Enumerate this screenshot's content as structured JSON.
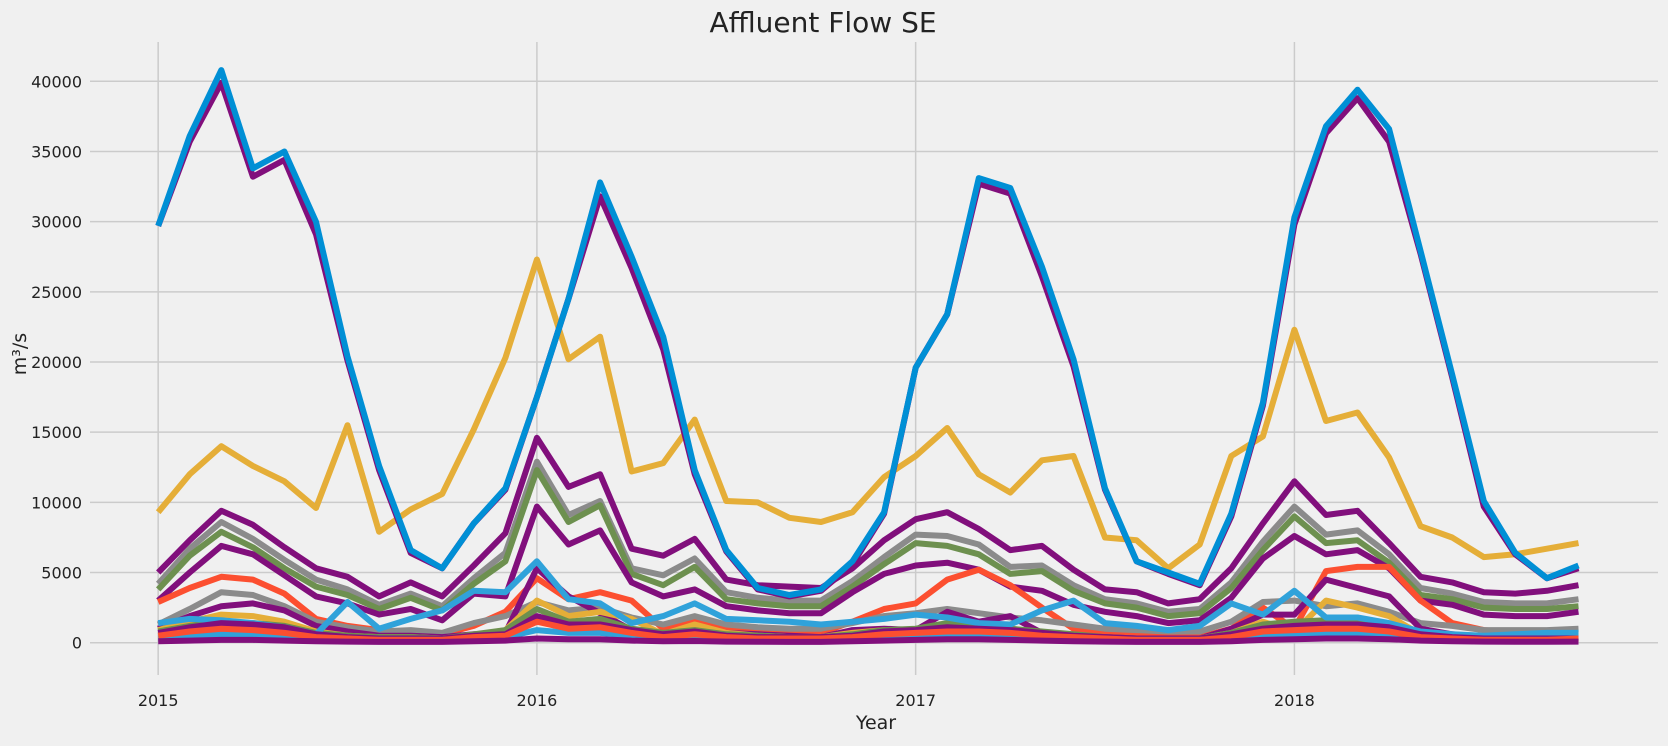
{
  "chart_data": {
    "type": "line",
    "title": "Affluent Flow SE",
    "xlabel": "Year",
    "ylabel": "m³/s",
    "x_ticks": [
      {
        "value": 2015,
        "label": "2015"
      },
      {
        "value": 2016,
        "label": "2016"
      },
      {
        "value": 2017,
        "label": "2017"
      },
      {
        "value": 2018,
        "label": "2018"
      }
    ],
    "y_ticks": [
      0,
      5000,
      10000,
      15000,
      20000,
      25000,
      30000,
      35000,
      40000
    ],
    "xlim": [
      2014.82,
      2018.96
    ],
    "ylim": [
      -2300,
      42800
    ],
    "grid": true,
    "legend": "none",
    "x": [
      2015.0,
      2015.0833,
      2015.1667,
      2015.25,
      2015.3333,
      2015.4167,
      2015.5,
      2015.5833,
      2015.6667,
      2015.75,
      2015.8333,
      2015.9167,
      2016.0,
      2016.0833,
      2016.1667,
      2016.25,
      2016.3333,
      2016.4167,
      2016.5,
      2016.5833,
      2016.6667,
      2016.75,
      2016.8333,
      2016.9167,
      2017.0,
      2017.0833,
      2017.1667,
      2017.25,
      2017.3333,
      2017.4167,
      2017.5,
      2017.5833,
      2017.6667,
      2017.75,
      2017.8333,
      2017.9167,
      2018.0,
      2018.0833,
      2018.1667,
      2018.25,
      2018.3333,
      2018.4167,
      2018.5,
      2018.5833,
      2018.6667,
      2018.75
    ],
    "series": [
      {
        "color": "#e5ae38",
        "values": [
          9300,
          12000,
          14000,
          12600,
          11500,
          9600,
          15500,
          7900,
          9500,
          10600,
          15200,
          20300,
          27300,
          20200,
          21800,
          12200,
          12800,
          15900,
          10100,
          10000,
          8900,
          8600,
          9300,
          11800,
          13300,
          15300,
          12000,
          10700,
          13000,
          13300,
          7500,
          7300,
          5300,
          7000,
          13300,
          14700,
          22300,
          15800,
          16400,
          13200,
          8300,
          7500,
          6100,
          6300,
          6700,
          7100
        ]
      },
      {
        "color": "#810f7c",
        "values": [
          5000,
          7300,
          9400,
          8400,
          6800,
          5300,
          4700,
          3300,
          4300,
          3300,
          5500,
          7800,
          14600,
          11100,
          12000,
          6700,
          6200,
          7400,
          4500,
          4100,
          4000,
          3900,
          5300,
          7300,
          8800,
          9300,
          8100,
          6600,
          6900,
          5200,
          3800,
          3600,
          2800,
          3100,
          5300,
          8500,
          11500,
          9100,
          9400,
          7100,
          4700,
          4300,
          3600,
          3500,
          3700,
          4100
        ]
      },
      {
        "color": "#8b8b8b",
        "values": [
          4200,
          6700,
          8600,
          7400,
          5900,
          4500,
          3800,
          2700,
          3500,
          2600,
          4600,
          6400,
          12900,
          9100,
          10100,
          5300,
          4800,
          6000,
          3600,
          3200,
          3000,
          3000,
          4400,
          6100,
          7700,
          7600,
          7000,
          5400,
          5500,
          4100,
          3100,
          2800,
          2200,
          2400,
          4300,
          7200,
          9700,
          7700,
          8000,
          6300,
          3900,
          3500,
          2900,
          2800,
          2800,
          3100
        ]
      },
      {
        "color": "#6d904f",
        "values": [
          3800,
          6200,
          7900,
          6800,
          5300,
          4000,
          3400,
          2400,
          3200,
          2300,
          4200,
          5800,
          12300,
          8600,
          9800,
          4900,
          4100,
          5400,
          3100,
          2800,
          2600,
          2600,
          4000,
          5600,
          7100,
          6900,
          6300,
          4900,
          5100,
          3700,
          2800,
          2500,
          1900,
          2100,
          3900,
          6600,
          9000,
          7100,
          7300,
          5700,
          3400,
          3100,
          2500,
          2400,
          2400,
          2600
        ]
      },
      {
        "color": "#810f7c",
        "values": [
          3000,
          5000,
          6900,
          6300,
          4800,
          3300,
          2800,
          2000,
          2400,
          1600,
          3500,
          3300,
          9700,
          7000,
          8000,
          4300,
          3300,
          3800,
          2600,
          2300,
          2100,
          2100,
          3600,
          4900,
          5500,
          5700,
          5200,
          4000,
          3700,
          2700,
          2200,
          1900,
          1400,
          1600,
          3200,
          6000,
          7600,
          6300,
          6600,
          5300,
          3000,
          2700,
          2000,
          1900,
          1900,
          2200
        ]
      },
      {
        "color": "#fc4f30",
        "values": [
          2900,
          3900,
          4700,
          4500,
          3500,
          1700,
          1200,
          900,
          700,
          600,
          1200,
          2200,
          4600,
          3100,
          3600,
          3000,
          1000,
          1600,
          1100,
          900,
          700,
          700,
          1500,
          2400,
          2800,
          4500,
          5200,
          4100,
          2500,
          1000,
          700,
          600,
          500,
          400,
          1000,
          2500,
          1000,
          5100,
          5400,
          5400,
          3000,
          1400,
          900,
          700,
          700,
          700
        ]
      },
      {
        "color": "#8b8b8b",
        "values": [
          1300,
          2400,
          3600,
          3400,
          2600,
          1500,
          1100,
          800,
          900,
          700,
          1400,
          1900,
          2900,
          2300,
          2500,
          1800,
          1300,
          1900,
          1300,
          1100,
          1000,
          1000,
          1400,
          1900,
          2100,
          2400,
          2100,
          1800,
          1600,
          1300,
          1000,
          900,
          800,
          800,
          1500,
          2900,
          3000,
          2600,
          2800,
          2200,
          1400,
          1200,
          900,
          900,
          900,
          1000
        ]
      },
      {
        "color": "#810f7c",
        "values": [
          1000,
          1900,
          2600,
          2800,
          2300,
          1200,
          800,
          500,
          500,
          400,
          600,
          700,
          5300,
          3300,
          2100,
          900,
          600,
          1000,
          700,
          600,
          500,
          400,
          900,
          1000,
          900,
          2200,
          1500,
          1900,
          700,
          500,
          400,
          300,
          300,
          300,
          1000,
          2000,
          2000,
          4500,
          3900,
          3300,
          1000,
          600,
          400,
          400,
          400,
          400
        ]
      },
      {
        "color": "#e5ae38",
        "values": [
          900,
          1500,
          2000,
          1900,
          1500,
          800,
          500,
          400,
          400,
          300,
          500,
          900,
          3000,
          1900,
          2200,
          1700,
          600,
          1300,
          700,
          500,
          400,
          400,
          700,
          900,
          800,
          1300,
          1100,
          900,
          500,
          400,
          300,
          300,
          300,
          300,
          700,
          1500,
          800,
          3000,
          2500,
          1900,
          600,
          400,
          300,
          300,
          300,
          300
        ]
      },
      {
        "color": "#6d904f",
        "values": [
          800,
          1200,
          1500,
          1400,
          1200,
          700,
          500,
          400,
          400,
          300,
          600,
          900,
          2400,
          1500,
          1700,
          1000,
          700,
          900,
          600,
          500,
          400,
          400,
          600,
          900,
          1000,
          1400,
          1200,
          1000,
          800,
          600,
          400,
          300,
          300,
          300,
          700,
          1300,
          1500,
          1600,
          1700,
          1300,
          700,
          500,
          400,
          300,
          300,
          400
        ]
      },
      {
        "color": "#30a2da",
        "values": [
          1400,
          1700,
          1600,
          1400,
          1100,
          600,
          2900,
          1000,
          1700,
          2300,
          3700,
          3600,
          5800,
          3100,
          2800,
          1400,
          1900,
          2800,
          1700,
          1600,
          1500,
          1300,
          1500,
          1700,
          2000,
          1800,
          1400,
          1300,
          2300,
          3000,
          1400,
          1200,
          900,
          1200,
          2800,
          2000,
          3700,
          1800,
          1800,
          1400,
          800,
          600,
          500,
          600,
          700,
          700
        ]
      },
      {
        "color": "#810f7c",
        "values": [
          700,
          1100,
          1400,
          1300,
          1100,
          600,
          400,
          300,
          300,
          300,
          500,
          600,
          1900,
          1300,
          1300,
          900,
          600,
          800,
          500,
          400,
          400,
          400,
          500,
          800,
          900,
          1100,
          1000,
          900,
          700,
          500,
          400,
          300,
          300,
          300,
          600,
          1000,
          1200,
          1300,
          1300,
          1100,
          600,
          400,
          300,
          300,
          300,
          300
        ]
      },
      {
        "color": "#30a2da",
        "values": [
          300,
          500,
          600,
          600,
          500,
          300,
          200,
          200,
          200,
          200,
          300,
          400,
          900,
          700,
          700,
          500,
          300,
          400,
          300,
          200,
          200,
          200,
          300,
          400,
          500,
          600,
          600,
          500,
          400,
          300,
          200,
          200,
          200,
          200,
          300,
          500,
          600,
          700,
          700,
          600,
          300,
          200,
          200,
          200,
          200,
          200
        ]
      },
      {
        "color": "#fc4f30",
        "values": [
          500,
          800,
          1000,
          900,
          700,
          400,
          300,
          200,
          200,
          200,
          400,
          500,
          1500,
          1000,
          1100,
          700,
          400,
          600,
          400,
          300,
          300,
          300,
          400,
          600,
          700,
          800,
          800,
          700,
          500,
          400,
          300,
          200,
          200,
          200,
          400,
          800,
          900,
          1000,
          1000,
          800,
          400,
          300,
          200,
          200,
          200,
          300
        ]
      },
      {
        "color": "#810f7c",
        "values": [
          100,
          150,
          200,
          200,
          150,
          100,
          80,
          60,
          60,
          60,
          100,
          150,
          300,
          250,
          250,
          150,
          100,
          120,
          80,
          70,
          60,
          60,
          100,
          150,
          200,
          250,
          250,
          200,
          150,
          100,
          80,
          60,
          60,
          60,
          100,
          200,
          250,
          300,
          300,
          250,
          150,
          100,
          80,
          70,
          70,
          80
        ]
      },
      {
        "color": "#810f7c",
        "values": [
          29700,
          35700,
          39900,
          33200,
          34400,
          29100,
          20100,
          12300,
          6400,
          5300,
          8500,
          10900,
          17500,
          24500,
          31800,
          26700,
          20900,
          12000,
          6500,
          3800,
          3300,
          3700,
          5600,
          9200,
          19600,
          23400,
          32700,
          32000,
          26100,
          19700,
          10900,
          5800,
          4900,
          4100,
          9000,
          16900,
          29800,
          36300,
          38800,
          35700,
          27700,
          18900,
          9700,
          6300,
          4600,
          5300
        ]
      },
      {
        "color": "#008fd5",
        "values": [
          29700,
          36100,
          40800,
          33800,
          35000,
          30000,
          20400,
          12600,
          6600,
          5300,
          8500,
          11000,
          17500,
          24500,
          32800,
          27500,
          21800,
          12300,
          6600,
          3900,
          3400,
          3800,
          5800,
          9300,
          19600,
          23400,
          33100,
          32400,
          26800,
          20200,
          11000,
          5800,
          5000,
          4200,
          9200,
          17100,
          30300,
          36800,
          39400,
          36600,
          27900,
          19100,
          10100,
          6400,
          4600,
          5500
        ]
      }
    ]
  }
}
